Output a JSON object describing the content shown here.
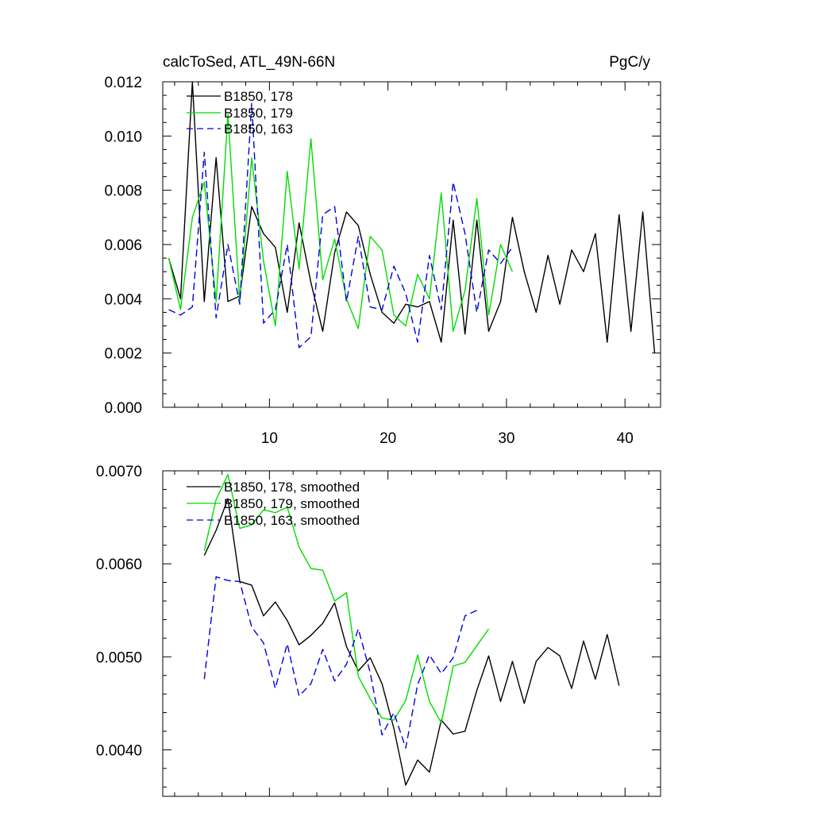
{
  "chart_data": [
    {
      "type": "line",
      "title": "calcToSed, ATL_49N-66N",
      "units": "PgC/y",
      "xlim": [
        1,
        43
      ],
      "ylim": [
        0,
        0.012
      ],
      "x_ticks": [
        10,
        20,
        30,
        40
      ],
      "y_ticks": [
        "0.000",
        "0.002",
        "0.004",
        "0.006",
        "0.008",
        "0.010",
        "0.012"
      ],
      "legend_position": "top-left",
      "grid": false,
      "series": [
        {
          "name": "B1850, 178",
          "color": "#000000",
          "dash": "solid",
          "x_start": 1.5,
          "values": [
            0.0055,
            0.004,
            0.012,
            0.0039,
            0.0092,
            0.0039,
            0.0041,
            0.0074,
            0.0064,
            0.0059,
            0.0035,
            0.0068,
            0.0046,
            0.0028,
            0.0057,
            0.0072,
            0.0067,
            0.0049,
            0.0035,
            0.0031,
            0.0038,
            0.0037,
            0.0039,
            0.0024,
            0.0069,
            0.0027,
            0.0069,
            0.0028,
            0.0039,
            0.007,
            0.005,
            0.0035,
            0.0056,
            0.0038,
            0.0058,
            0.005,
            0.0064,
            0.0024,
            0.0071,
            0.0028,
            0.0072,
            0.002
          ]
        },
        {
          "name": "B1850, 179",
          "color": "#00dd00",
          "dash": "solid",
          "x_start": 1.5,
          "values": [
            0.0055,
            0.0036,
            0.007,
            0.0083,
            0.0039,
            0.0108,
            0.0039,
            0.0092,
            0.0054,
            0.003,
            0.0087,
            0.0051,
            0.0099,
            0.0047,
            0.0062,
            0.004,
            0.0029,
            0.0063,
            0.0058,
            0.0034,
            0.003,
            0.0049,
            0.004,
            0.0079,
            0.0028,
            0.0043,
            0.0077,
            0.0034,
            0.006,
            0.005
          ]
        },
        {
          "name": "B1850, 163",
          "color": "#0000dd",
          "dash": "dashed",
          "x_start": 1.5,
          "values": [
            0.0036,
            0.0034,
            0.0037,
            0.0094,
            0.0033,
            0.006,
            0.0038,
            0.0112,
            0.0031,
            0.0036,
            0.006,
            0.0022,
            0.0026,
            0.0071,
            0.0074,
            0.0039,
            0.0063,
            0.0037,
            0.0036,
            0.0052,
            0.0042,
            0.0024,
            0.0056,
            0.0036,
            0.0083,
            0.0064,
            0.0035,
            0.0058,
            0.0053,
            0.0059
          ]
        }
      ]
    },
    {
      "type": "line",
      "xlim": [
        1,
        43
      ],
      "ylim": [
        0.0035,
        0.007
      ],
      "x_ticks": [
        10,
        20,
        30,
        40
      ],
      "y_ticks": [
        "0.0040",
        "0.0050",
        "0.0060",
        "0.0070"
      ],
      "legend_position": "top-left",
      "grid": false,
      "series": [
        {
          "name": "B1850, 178, smoothed",
          "color": "#000000",
          "dash": "solid",
          "x_start": 4.5,
          "values": [
            0.00609,
            0.00636,
            0.0067,
            0.00581,
            0.00577,
            0.00544,
            0.00559,
            0.00539,
            0.00513,
            0.00523,
            0.00536,
            0.00558,
            0.00511,
            0.00485,
            0.00499,
            0.00471,
            0.00423,
            0.00362,
            0.00389,
            0.00376,
            0.00432,
            0.00417,
            0.0042,
            0.00464,
            0.00501,
            0.00452,
            0.00495,
            0.0045,
            0.00495,
            0.0051,
            0.00501,
            0.00466,
            0.00517,
            0.00476,
            0.00524,
            0.00469
          ]
        },
        {
          "name": "B1850, 179, smoothed",
          "color": "#00dd00",
          "dash": "solid",
          "x_start": 4.5,
          "values": [
            0.00614,
            0.00669,
            0.00696,
            0.00638,
            0.00642,
            0.00658,
            0.00655,
            0.00661,
            0.00618,
            0.00595,
            0.00593,
            0.0056,
            0.00569,
            0.00479,
            0.00455,
            0.00434,
            0.00432,
            0.00453,
            0.00502,
            0.00452,
            0.00429,
            0.0049,
            0.00494,
            0.00512,
            0.0053
          ]
        },
        {
          "name": "B1850, 163, smoothed",
          "color": "#0000dd",
          "dash": "dashed",
          "x_start": 4.5,
          "values": [
            0.00476,
            0.00586,
            0.00582,
            0.00581,
            0.00532,
            0.00515,
            0.00466,
            0.00514,
            0.00458,
            0.00471,
            0.00508,
            0.00474,
            0.00492,
            0.0053,
            0.00483,
            0.00416,
            0.0044,
            0.00402,
            0.0047,
            0.00502,
            0.00482,
            0.00499,
            0.00544,
            0.0055
          ]
        }
      ]
    }
  ]
}
